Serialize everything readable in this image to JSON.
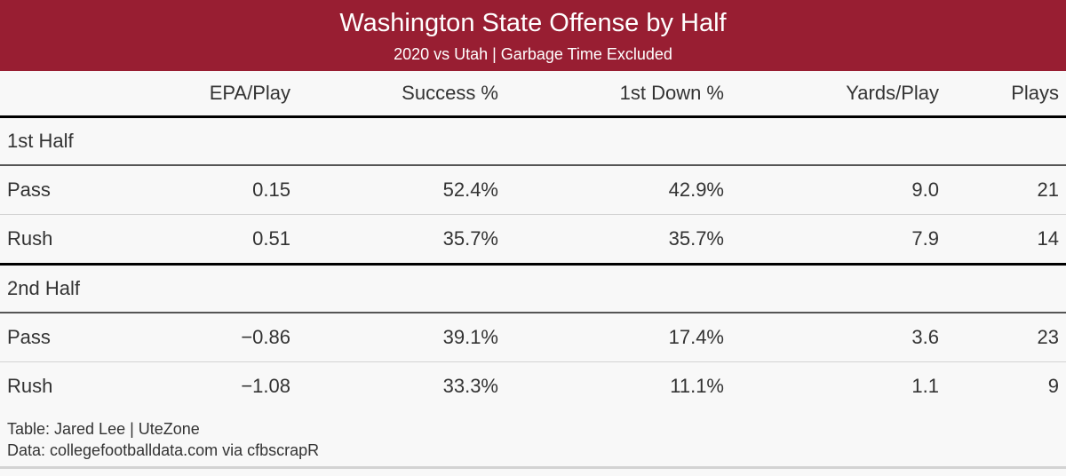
{
  "header": {
    "title": "Washington State Offense by Half",
    "subtitle": "2020 vs Utah | Garbage Time Excluded",
    "color": "#981e32"
  },
  "chart_data": {
    "type": "table",
    "columns": [
      "",
      "EPA/Play",
      "Success %",
      "1st Down %",
      "Yards/Play",
      "Plays"
    ],
    "groups": [
      {
        "label": "1st Half",
        "rows": [
          [
            "Pass",
            "0.15",
            "52.4%",
            "42.9%",
            "9.0",
            "21"
          ],
          [
            "Rush",
            "0.51",
            "35.7%",
            "35.7%",
            "7.9",
            "14"
          ]
        ]
      },
      {
        "label": "2nd Half",
        "rows": [
          [
            "Pass",
            "−0.86",
            "39.1%",
            "17.4%",
            "3.6",
            "23"
          ],
          [
            "Rush",
            "−1.08",
            "33.3%",
            "11.1%",
            "1.1",
            "9"
          ]
        ]
      }
    ]
  },
  "footer": {
    "line1": "Table: Jared Lee | UteZone",
    "line2": "Data: collegefootballdata.com via cfbscrapR"
  }
}
